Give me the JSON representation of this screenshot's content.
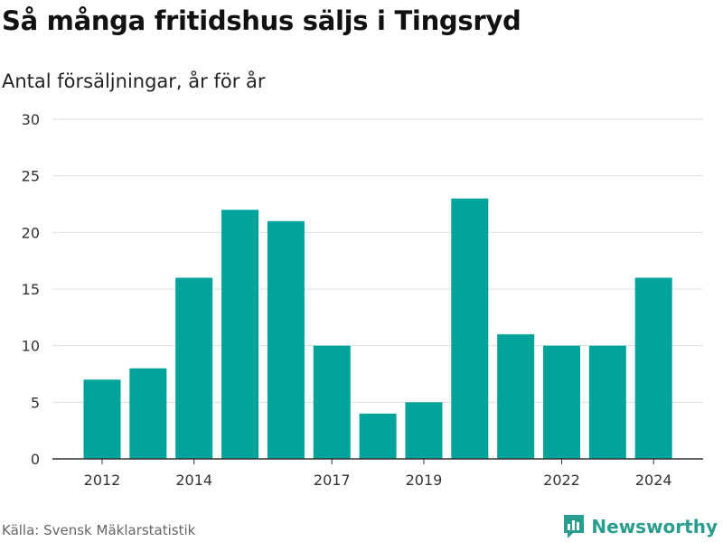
{
  "title": "Så många fritidshus säljs i Tingsryd",
  "subtitle": "Antal försäljningar, år för år",
  "source": "Källa: Svensk Mäklarstatistik",
  "brand": {
    "name": "Newsworthy",
    "icon": "newsworthy-logo-icon"
  },
  "colors": {
    "bar": "#00a39a",
    "grid": "#dddddd",
    "axis": "#333333",
    "brand": "#2a9d8f"
  },
  "chart_data": {
    "type": "bar",
    "categories": [
      "2012",
      "2013",
      "2014",
      "2015",
      "2016",
      "2017",
      "2018",
      "2019",
      "2020",
      "2021",
      "2022",
      "2023",
      "2024"
    ],
    "values": [
      7,
      8,
      16,
      22,
      21,
      10,
      4,
      5,
      23,
      11,
      10,
      10,
      16
    ],
    "x_tick_labels": [
      "2012",
      "",
      "2014",
      "",
      "",
      "2017",
      "",
      "2019",
      "",
      "",
      "2022",
      "",
      "2024"
    ],
    "y_ticks": [
      0,
      5,
      10,
      15,
      20,
      25,
      30
    ],
    "ylim": [
      0,
      30
    ],
    "grid": true,
    "legend": "none"
  }
}
